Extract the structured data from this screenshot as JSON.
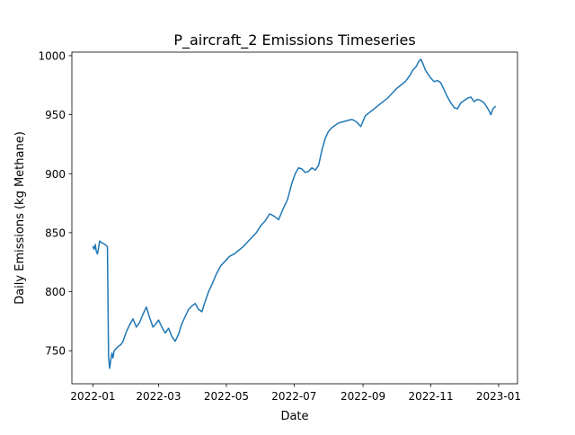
{
  "chart_data": {
    "type": "line",
    "title": "P_aircraft_2 Emissions Timeseries",
    "xlabel": "Date",
    "ylabel": "Daily Emissions (kg Methane)",
    "xlim": [
      "2021-12-13",
      "2023-01-18"
    ],
    "ylim": [
      722,
      1003
    ],
    "grid": false,
    "legend": "none",
    "line_color": "#1f77b4",
    "xticks": [
      {
        "date": "2022-01-01",
        "label": "2022-01"
      },
      {
        "date": "2022-03-01",
        "label": "2022-03"
      },
      {
        "date": "2022-05-01",
        "label": "2022-05"
      },
      {
        "date": "2022-07-01",
        "label": "2022-07"
      },
      {
        "date": "2022-09-01",
        "label": "2022-09"
      },
      {
        "date": "2022-11-01",
        "label": "2022-11"
      },
      {
        "date": "2023-01-01",
        "label": "2023-01"
      }
    ],
    "yticks": [
      750,
      800,
      850,
      900,
      950,
      1000
    ],
    "series": [
      {
        "x": [
          "2022-01-01",
          "2022-01-02",
          "2022-01-03",
          "2022-01-04",
          "2022-01-05",
          "2022-01-06",
          "2022-01-07",
          "2022-01-08",
          "2022-01-10",
          "2022-01-12",
          "2022-01-14",
          "2022-01-15",
          "2022-01-16",
          "2022-01-17",
          "2022-01-18",
          "2022-01-19",
          "2022-01-20",
          "2022-01-22",
          "2022-01-24",
          "2022-01-26",
          "2022-01-28",
          "2022-01-31",
          "2022-02-03",
          "2022-02-06",
          "2022-02-09",
          "2022-02-12",
          "2022-02-15",
          "2022-02-18",
          "2022-02-21",
          "2022-02-24",
          "2022-02-26",
          "2022-03-01",
          "2022-03-04",
          "2022-03-07",
          "2022-03-10",
          "2022-03-13",
          "2022-03-16",
          "2022-03-19",
          "2022-03-22",
          "2022-03-25",
          "2022-03-28",
          "2022-03-31",
          "2022-04-03",
          "2022-04-06",
          "2022-04-09",
          "2022-04-12",
          "2022-04-15",
          "2022-04-18",
          "2022-04-22",
          "2022-04-26",
          "2022-04-30",
          "2022-05-04",
          "2022-05-08",
          "2022-05-12",
          "2022-05-16",
          "2022-05-20",
          "2022-05-24",
          "2022-05-28",
          "2022-06-01",
          "2022-06-05",
          "2022-06-09",
          "2022-06-13",
          "2022-06-17",
          "2022-06-21",
          "2022-06-25",
          "2022-06-29",
          "2022-07-02",
          "2022-07-05",
          "2022-07-08",
          "2022-07-11",
          "2022-07-14",
          "2022-07-17",
          "2022-07-20",
          "2022-07-23",
          "2022-07-26",
          "2022-07-29",
          "2022-08-01",
          "2022-08-04",
          "2022-08-07",
          "2022-08-10",
          "2022-08-14",
          "2022-08-18",
          "2022-08-22",
          "2022-08-26",
          "2022-08-30",
          "2022-09-03",
          "2022-09-07",
          "2022-09-11",
          "2022-09-15",
          "2022-09-19",
          "2022-09-23",
          "2022-09-27",
          "2022-10-01",
          "2022-10-05",
          "2022-10-09",
          "2022-10-13",
          "2022-10-16",
          "2022-10-19",
          "2022-10-21",
          "2022-10-23",
          "2022-10-25",
          "2022-10-27",
          "2022-10-29",
          "2022-11-01",
          "2022-11-04",
          "2022-11-07",
          "2022-11-10",
          "2022-11-13",
          "2022-11-16",
          "2022-11-19",
          "2022-11-22",
          "2022-11-25",
          "2022-11-28",
          "2022-12-01",
          "2022-12-04",
          "2022-12-07",
          "2022-12-10",
          "2022-12-13",
          "2022-12-16",
          "2022-12-19",
          "2022-12-21",
          "2022-12-23",
          "2022-12-25",
          "2022-12-27",
          "2022-12-29"
        ],
        "y": [
          838,
          836,
          840,
          834,
          832,
          837,
          843,
          842,
          841,
          840,
          838,
          745,
          735,
          742,
          748,
          744,
          750,
          752,
          754,
          755,
          758,
          766,
          772,
          777,
          770,
          774,
          781,
          787,
          778,
          770,
          772,
          776,
          770,
          765,
          769,
          762,
          758,
          764,
          773,
          779,
          785,
          788,
          790,
          785,
          783,
          792,
          800,
          806,
          815,
          822,
          826,
          830,
          832,
          835,
          838,
          842,
          846,
          850,
          856,
          860,
          866,
          864,
          861,
          870,
          878,
          892,
          900,
          905,
          904,
          901,
          902,
          905,
          903,
          907,
          920,
          930,
          936,
          939,
          941,
          943,
          944,
          945,
          946,
          944,
          940,
          949,
          952,
          955,
          958,
          961,
          964,
          968,
          972,
          975,
          978,
          983,
          988,
          991,
          995,
          997,
          993,
          988,
          985,
          981,
          978,
          979,
          977,
          971,
          965,
          960,
          956,
          955,
          960,
          962,
          964,
          965,
          961,
          963,
          962,
          960,
          957,
          954,
          950,
          955,
          957
        ]
      }
    ]
  }
}
